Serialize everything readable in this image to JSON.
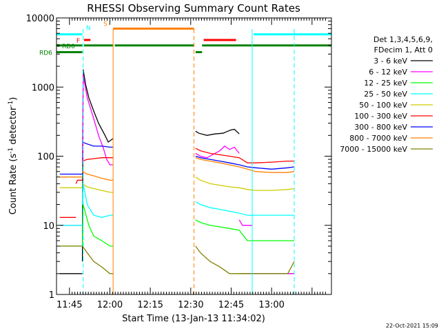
{
  "chart_data": {
    "type": "line",
    "title": "RHESSI Observing Summary Count Rates",
    "xlabel": "Start Time (13-Jan-13 11:34:02)",
    "ylabel_main": "Count Rate (s",
    "ylabel_sup1": "-1",
    "ylabel_mid": " detector",
    "ylabel_sup2": "-1",
    "ylabel_end": ")",
    "yscale": "log",
    "ylim": [
      1,
      10000
    ],
    "xlim_minutes": [
      11.67,
      13.37
    ],
    "xticks": [
      {
        "label": "11:45"
      },
      {
        "label": "12:00"
      },
      {
        "label": "12:15"
      },
      {
        "label": "12:30"
      },
      {
        "label": "12:45"
      },
      {
        "label": "13:00"
      }
    ],
    "yticks": [
      {
        "label": "1"
      },
      {
        "label": "10"
      },
      {
        "label": "100"
      },
      {
        "label": "1000"
      },
      {
        "label": "10000"
      }
    ],
    "legend": {
      "header1": "Det 1,3,4,5,6,9,",
      "header2": "FDecim 1, Att 0",
      "placement": "right"
    },
    "series": [
      {
        "name": "3 - 6 keV",
        "color": "#000000",
        "segments": [
          {
            "x": [
              11.69,
              11.74,
              11.78,
              11.8,
              11.83
            ],
            "y": [
              2,
              2,
              2,
              2,
              2
            ]
          },
          {
            "x": [
              11.83,
              11.835,
              11.85,
              11.87,
              11.9,
              11.93,
              11.97,
              11.99,
              12.02
            ],
            "y": [
              3,
              1800,
              1100,
              700,
              450,
              300,
              200,
              160,
              180
            ]
          },
          {
            "x": [
              12.53,
              12.55,
              12.6,
              12.65,
              12.7,
              12.73,
              12.75,
              12.77,
              12.8
            ],
            "y": [
              230,
              215,
              200,
              210,
              215,
              230,
              240,
              245,
              210
            ]
          },
          {
            "x": [
              12.8,
              12.85,
              12.9,
              12.95,
              13.0,
              13.05,
              13.1,
              13.14
            ],
            "y": [
              2,
              2,
              2,
              2,
              2,
              2,
              2,
              2
            ]
          }
        ]
      },
      {
        "name": "6 - 12 keV",
        "color": "#ff00ff",
        "segments": [
          {
            "x": [
              11.69,
              11.72,
              11.77,
              11.8,
              11.83
            ],
            "y": [
              10,
              10,
              10,
              10,
              10
            ]
          },
          {
            "x": [
              11.83,
              11.835,
              11.86,
              11.9,
              11.93,
              11.96,
              11.98,
              12.0,
              12.02
            ],
            "y": [
              80,
              1500,
              700,
              350,
              200,
              130,
              90,
              75,
              75
            ]
          },
          {
            "x": [
              12.53,
              12.56,
              12.6,
              12.65,
              12.68,
              12.71,
              12.74,
              12.77,
              12.8
            ],
            "y": [
              110,
              100,
              95,
              110,
              120,
              140,
              125,
              135,
              110
            ]
          },
          {
            "x": [
              12.8,
              12.82,
              12.85,
              12.88
            ],
            "y": [
              12,
              10,
              10,
              10
            ]
          },
          {
            "x": [
              12.88,
              12.95,
              13.0,
              13.05,
              13.1,
              13.14
            ],
            "y": [
              2,
              2,
              2,
              2,
              2,
              2
            ]
          }
        ]
      },
      {
        "name": "12 - 25 keV",
        "color": "#00ff00",
        "segments": [
          {
            "x": [
              11.69,
              11.72,
              11.76,
              11.8,
              11.83
            ],
            "y": [
              5,
              5,
              5,
              5,
              5
            ]
          },
          {
            "x": [
              11.83,
              11.835,
              11.87,
              11.9,
              11.95,
              12.0,
              12.02
            ],
            "y": [
              5,
              20,
              10,
              7,
              6,
              5,
              5
            ]
          },
          {
            "x": [
              12.53,
              12.56,
              12.62,
              12.68,
              12.74,
              12.8,
              12.85,
              12.9,
              13.0,
              13.1,
              13.14
            ],
            "y": [
              12,
              11,
              10,
              9.5,
              9,
              8.5,
              6,
              6,
              6,
              6,
              6
            ]
          }
        ]
      },
      {
        "name": "25 - 50 keV",
        "color": "#00ffff",
        "segments": [
          {
            "x": [
              11.69,
              11.72,
              11.76,
              11.8,
              11.83
            ],
            "y": [
              10,
              10,
              10,
              10,
              10
            ]
          },
          {
            "x": [
              11.83,
              11.835,
              11.86,
              11.9,
              11.95,
              12.0,
              12.02
            ],
            "y": [
              20,
              40,
              20,
              14,
              13,
              14,
              14
            ]
          },
          {
            "x": [
              12.53,
              12.56,
              12.62,
              12.68,
              12.74,
              12.8,
              12.85,
              12.9,
              13.0,
              13.1,
              13.14
            ],
            "y": [
              22,
              20,
              18,
              17,
              16,
              15,
              14,
              14,
              14,
              14,
              14
            ]
          }
        ]
      },
      {
        "name": "50 - 100 keV",
        "color": "#cccc00",
        "segments": [
          {
            "x": [
              11.69,
              11.72,
              11.76,
              11.8,
              11.83
            ],
            "y": [
              35,
              35,
              35,
              35,
              35
            ]
          },
          {
            "x": [
              11.83,
              11.86,
              11.9,
              11.95,
              12.0,
              12.02
            ],
            "y": [
              40,
              36,
              34,
              32,
              30,
              30
            ]
          },
          {
            "x": [
              12.53,
              12.56,
              12.62,
              12.68,
              12.74,
              12.8,
              12.85,
              12.9,
              13.0,
              13.1,
              13.14
            ],
            "y": [
              50,
              45,
              40,
              38,
              36,
              35,
              33,
              32,
              32,
              33,
              34
            ]
          }
        ]
      },
      {
        "name": "100 - 300 keV",
        "color": "#ff0000",
        "segments": [
          {
            "x": [
              11.69,
              11.72,
              11.76,
              11.79
            ],
            "y": [
              13,
              13,
              13,
              13
            ]
          },
          {
            "x": [
              11.79,
              11.8,
              11.83
            ],
            "y": [
              40,
              45,
              45
            ]
          },
          {
            "x": [
              11.83,
              11.86,
              11.9,
              11.95,
              12.0,
              12.02
            ],
            "y": [
              85,
              90,
              92,
              95,
              95,
              95
            ]
          },
          {
            "x": [
              12.53,
              12.56,
              12.62,
              12.68,
              12.74,
              12.8,
              12.85,
              12.9,
              13.0,
              13.1,
              13.14
            ],
            "y": [
              130,
              120,
              110,
              105,
              100,
              95,
              80,
              80,
              82,
              85,
              85
            ]
          }
        ]
      },
      {
        "name": "300 - 800 keV",
        "color": "#0000ff",
        "segments": [
          {
            "x": [
              11.69,
              11.72,
              11.76,
              11.8,
              11.83
            ],
            "y": [
              55,
              55,
              55,
              55,
              55
            ]
          },
          {
            "x": [
              11.83,
              11.86,
              11.9,
              11.95,
              12.0,
              12.02
            ],
            "y": [
              160,
              150,
              140,
              140,
              135,
              135
            ]
          },
          {
            "x": [
              12.53,
              12.56,
              12.62,
              12.68,
              12.74,
              12.8,
              12.85,
              12.9,
              13.0,
              13.1,
              13.14
            ],
            "y": [
              100,
              95,
              90,
              85,
              80,
              75,
              70,
              68,
              65,
              68,
              70
            ]
          }
        ]
      },
      {
        "name": "800 - 7000 keV",
        "color": "#ff8000",
        "segments": [
          {
            "x": [
              11.69,
              11.72,
              11.76,
              11.8,
              11.83
            ],
            "y": [
              50,
              50,
              50,
              50,
              50
            ]
          },
          {
            "x": [
              11.83,
              11.86,
              11.9,
              11.95,
              12.0,
              12.02
            ],
            "y": [
              60,
              55,
              52,
              48,
              45,
              45
            ]
          },
          {
            "x": [
              12.53,
              12.56,
              12.62,
              12.68,
              12.74,
              12.8,
              12.85,
              12.9,
              13.0,
              13.1,
              13.14
            ],
            "y": [
              95,
              90,
              85,
              80,
              75,
              70,
              65,
              60,
              58,
              58,
              60
            ]
          }
        ]
      },
      {
        "name": "7000 - 15000 keV",
        "color": "#808000",
        "segments": [
          {
            "x": [
              11.69,
              11.72,
              11.76,
              11.8,
              11.83
            ],
            "y": [
              5,
              5,
              5,
              5,
              5
            ]
          },
          {
            "x": [
              11.83,
              11.86,
              11.9,
              11.95,
              12.0,
              12.02
            ],
            "y": [
              5,
              4,
              3,
              2.5,
              2,
              2
            ]
          },
          {
            "x": [
              12.53,
              12.56,
              12.62,
              12.68,
              12.74,
              12.8,
              12.85,
              12.9,
              13.0,
              13.1,
              13.14
            ],
            "y": [
              5,
              4,
              3,
              2.5,
              2,
              2,
              2,
              2,
              2,
              2,
              3
            ]
          }
        ]
      }
    ],
    "flags": [
      {
        "label": "RD0",
        "color": "#008000",
        "y": 4000,
        "segments": [
          [
            11.67,
            11.83
          ],
          [
            11.84,
            12.02
          ],
          [
            12.03,
            12.52
          ],
          [
            12.57,
            13.37
          ]
        ]
      },
      {
        "label": "RD6",
        "color": "#008000",
        "y": 3200,
        "segments": [
          [
            11.67,
            11.83
          ],
          [
            12.53,
            12.57
          ]
        ]
      },
      {
        "label": "",
        "color": "#00ffff",
        "y": 5800,
        "segments": [
          [
            11.67,
            11.83
          ],
          [
            12.89,
            13.37
          ]
        ]
      },
      {
        "label": "F",
        "color": "#ff0000",
        "y": 4800,
        "segments": [
          [
            11.84,
            11.88
          ],
          [
            12.58,
            12.78
          ]
        ]
      },
      {
        "label": "N",
        "color": "#00ffff",
        "y": 5800,
        "segments": []
      },
      {
        "label": "S",
        "color": "#ff8000",
        "y": 7000,
        "segments": [
          [
            12.02,
            12.52
          ]
        ]
      }
    ],
    "vlines": [
      {
        "x": 11.835,
        "color": "#00ffff",
        "style": "dashed"
      },
      {
        "x": 12.02,
        "color": "#ff8000",
        "style": "solid"
      },
      {
        "x": 12.52,
        "color": "#ff8000",
        "style": "dashed"
      },
      {
        "x": 12.88,
        "color": "#00ffff",
        "style": "solid"
      },
      {
        "x": 13.14,
        "color": "#00ffff",
        "style": "dashed"
      }
    ],
    "footer_timestamp": "22-Oct-2021 15:09"
  }
}
